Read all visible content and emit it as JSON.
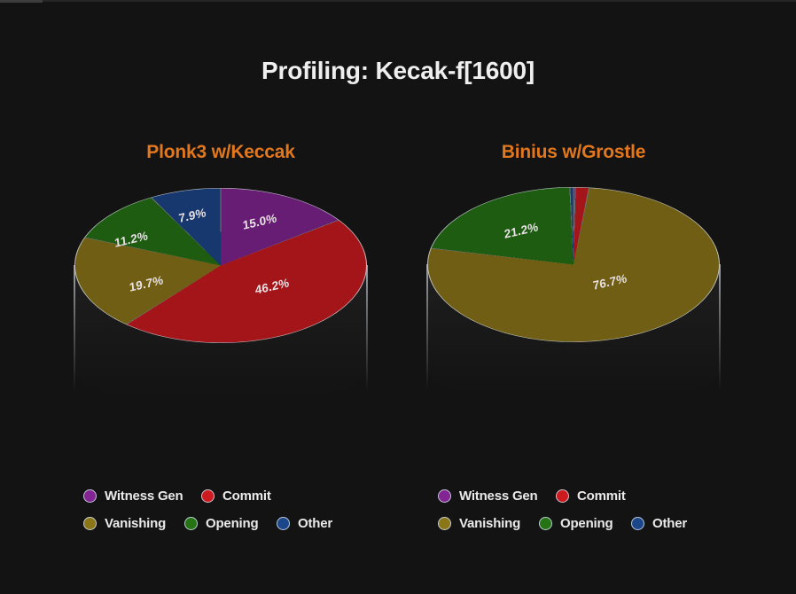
{
  "page": {
    "title": "Profiling: Kecak-f[1600]",
    "background_color": "#131313",
    "accent_color": "#e2771c"
  },
  "chart_data": [
    {
      "type": "pie",
      "style": "3d-pie",
      "title": "Plonk3 w/Keccak",
      "direction": "clockwise",
      "start_angle": "12-oclock",
      "legend_position": "below",
      "categories": [
        "Witness Gen",
        "Commit",
        "Vanishing",
        "Opening",
        "Other"
      ],
      "values": [
        15.0,
        46.2,
        19.7,
        11.2,
        7.9
      ],
      "colors": [
        "#681d74",
        "#a31519",
        "#6f5e13",
        "#1e5c12",
        "#16386e"
      ],
      "slice_labels": [
        "15.0%",
        "46.2%",
        "19.7%",
        "11.2%",
        "7.9%"
      ]
    },
    {
      "type": "pie",
      "style": "3d-pie",
      "title": "Binius w/Grostle",
      "direction": "clockwise",
      "start_angle": "12-oclock",
      "legend_position": "below",
      "categories": [
        "Witness Gen",
        "Commit",
        "Vanishing",
        "Opening",
        "Other"
      ],
      "values": [
        0.2,
        1.5,
        76.7,
        21.2,
        0.4
      ],
      "colors": [
        "#681d74",
        "#a31519",
        "#6f5e13",
        "#1e5c12",
        "#16386e"
      ],
      "slice_labels": [
        "",
        "",
        "76.7%",
        "21.2%",
        ""
      ]
    }
  ]
}
